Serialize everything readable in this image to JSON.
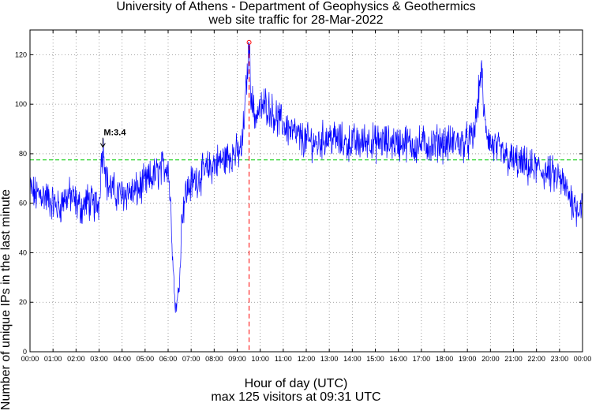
{
  "chart_data": {
    "type": "line",
    "title": "University of Athens - Department of Geophysics & Geothermics",
    "subtitle": "web site traffic for 28-Mar-2022",
    "xlabel": "Hour of day (UTC)",
    "xlabel2": "max 125 visitors at 09:31 UTC",
    "ylabel": "Number of unique IPs in the last minute",
    "ylim": [
      0,
      130
    ],
    "xlim_hours": [
      0,
      24
    ],
    "grid": true,
    "y_ticks": [
      0,
      20,
      40,
      60,
      80,
      100,
      120
    ],
    "x_ticks": [
      "00:00",
      "01:00",
      "02:00",
      "03:00",
      "04:00",
      "05:00",
      "06:00",
      "07:00",
      "08:00",
      "09:00",
      "10:00",
      "11:00",
      "12:00",
      "13:00",
      "14:00",
      "15:00",
      "16:00",
      "17:00",
      "18:00",
      "19:00",
      "20:00",
      "21:00",
      "22:00",
      "23:00",
      "00:00"
    ],
    "mean_line": 77.5,
    "max_point": {
      "time": "09:31",
      "value": 125
    },
    "annotation": {
      "label": "M:3.4",
      "time": "03:10",
      "value": 82
    },
    "series": [
      {
        "color": "#0000ff",
        "x_hours": [
          0,
          0.25,
          0.5,
          0.75,
          1,
          1.25,
          1.5,
          1.75,
          2,
          2.25,
          2.5,
          2.75,
          3,
          3.1,
          3.2,
          3.35,
          3.5,
          3.75,
          4,
          4.25,
          4.5,
          4.75,
          5,
          5.25,
          5.5,
          5.75,
          6,
          6.1,
          6.2,
          6.3,
          6.4,
          6.5,
          6.6,
          6.75,
          7,
          7.25,
          7.5,
          7.75,
          8,
          8.25,
          8.5,
          8.75,
          9,
          9.2,
          9.35,
          9.45,
          9.52,
          9.6,
          9.75,
          10,
          10.25,
          10.5,
          10.75,
          11,
          11.25,
          11.5,
          11.75,
          12,
          12.25,
          12.5,
          12.75,
          13,
          13.25,
          13.5,
          13.75,
          14,
          14.25,
          14.5,
          14.75,
          15,
          15.25,
          15.5,
          15.75,
          16,
          16.25,
          16.5,
          16.75,
          17,
          17.25,
          17.5,
          17.75,
          18,
          18.25,
          18.5,
          18.75,
          19,
          19.25,
          19.45,
          19.6,
          19.75,
          20,
          20.25,
          20.5,
          20.75,
          21,
          21.25,
          21.5,
          21.75,
          22,
          22.25,
          22.5,
          22.75,
          23,
          23.25,
          23.5,
          23.75,
          24
        ],
        "values": [
          66,
          63,
          64,
          62,
          60,
          58,
          62,
          63,
          60,
          58,
          61,
          59,
          60,
          78,
          82,
          68,
          66,
          64,
          63,
          65,
          64,
          66,
          68,
          70,
          72,
          74,
          76,
          60,
          40,
          18,
          20,
          30,
          55,
          64,
          68,
          70,
          72,
          74,
          76,
          77,
          78,
          80,
          80,
          82,
          100,
          115,
          125,
          105,
          95,
          98,
          100,
          97,
          94,
          92,
          90,
          88,
          86,
          85,
          85,
          84,
          86,
          87,
          86,
          85,
          84,
          85,
          84,
          85,
          86,
          84,
          85,
          84,
          85,
          84,
          85,
          84,
          83,
          84,
          84,
          83,
          85,
          84,
          84,
          85,
          84,
          85,
          86,
          100,
          115,
          92,
          84,
          82,
          80,
          78,
          77,
          76,
          75,
          74,
          74,
          73,
          72,
          71,
          70,
          66,
          62,
          58,
          60
        ]
      }
    ]
  }
}
